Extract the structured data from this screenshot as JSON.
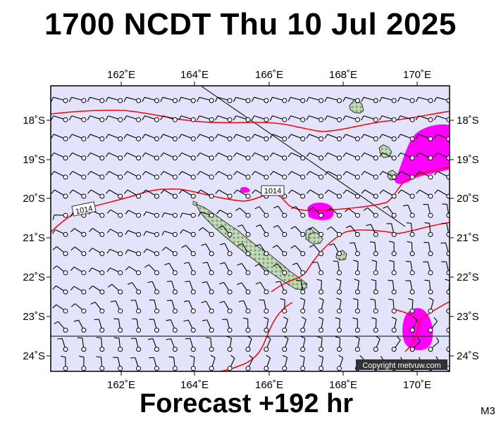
{
  "header": {
    "title": "1700 NCDT Thu 10 Jul 2025"
  },
  "footer": {
    "forecast": "Forecast +192 hr",
    "model": "M3"
  },
  "map": {
    "copyright": "Copyright metvuw.com",
    "lon_ticks": [
      "162˚E",
      "164˚E",
      "166˚E",
      "168˚E",
      "170˚E"
    ],
    "lat_ticks": [
      "18˚S",
      "19˚S",
      "20˚S",
      "21˚S",
      "22˚S",
      "23˚S",
      "24˚S"
    ],
    "isobar_labels": [
      "1014",
      "1014"
    ],
    "colors": {
      "ocean": "#e3e3fb",
      "isobar": "#ff0000",
      "rain": "#ff00ff",
      "land": "#a8c8a0"
    }
  }
}
